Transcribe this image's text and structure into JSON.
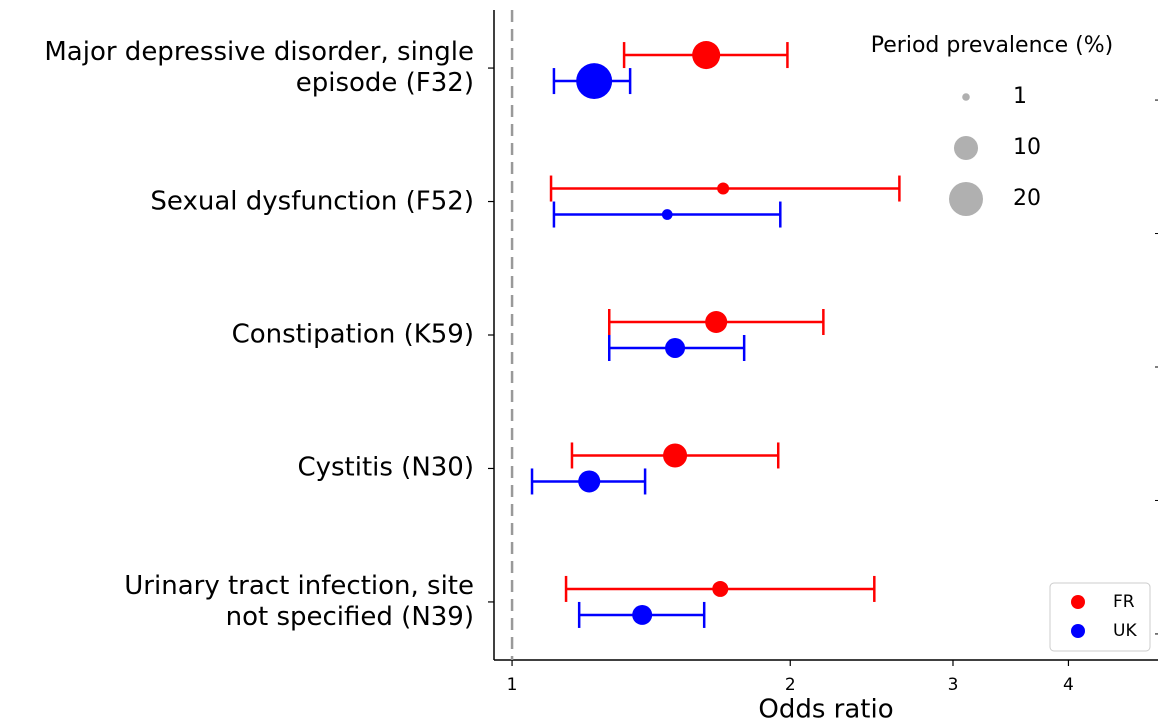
{
  "chart_data": {
    "type": "forest",
    "xlabel": "Odds ratio",
    "xscale": "log",
    "xlim": [
      0.956,
      5.0
    ],
    "xticks": [
      1,
      2,
      3,
      4
    ],
    "reference_line": 1,
    "categories": [
      "Major depressive disorder, single\nepisode (F32)",
      "Sexual dysfunction (F52)",
      "Constipation (K59)",
      "Cystitis (N30)",
      "Urinary tract infection, site\nnot specified (N39)"
    ],
    "series": [
      {
        "name": "FR",
        "color": "#ff0000",
        "values": [
          1.622,
          1.692,
          1.663,
          1.501,
          1.68
        ],
        "lower": [
          1.322,
          1.102,
          1.274,
          1.161,
          1.144
        ],
        "upper": [
          1.986,
          2.625,
          2.172,
          1.941,
          2.466
        ],
        "prevalence": [
          13.6,
          2.5,
          8.4,
          10,
          4.4
        ]
      },
      {
        "name": "UK",
        "color": "#0000ff",
        "values": [
          1.227,
          1.472,
          1.501,
          1.212,
          1.383
        ],
        "lower": [
          1.11,
          1.11,
          1.274,
          1.051,
          1.182
        ],
        "upper": [
          1.342,
          1.951,
          1.783,
          1.393,
          1.614
        ],
        "prevalence": [
          22.4,
          2,
          6.9,
          8.4,
          6.9
        ]
      }
    ],
    "size_legend": {
      "title": "Period prevalence (%)",
      "sizes": [
        1,
        10,
        20
      ],
      "color": "#b0b0b0"
    },
    "legend": "lower right"
  }
}
